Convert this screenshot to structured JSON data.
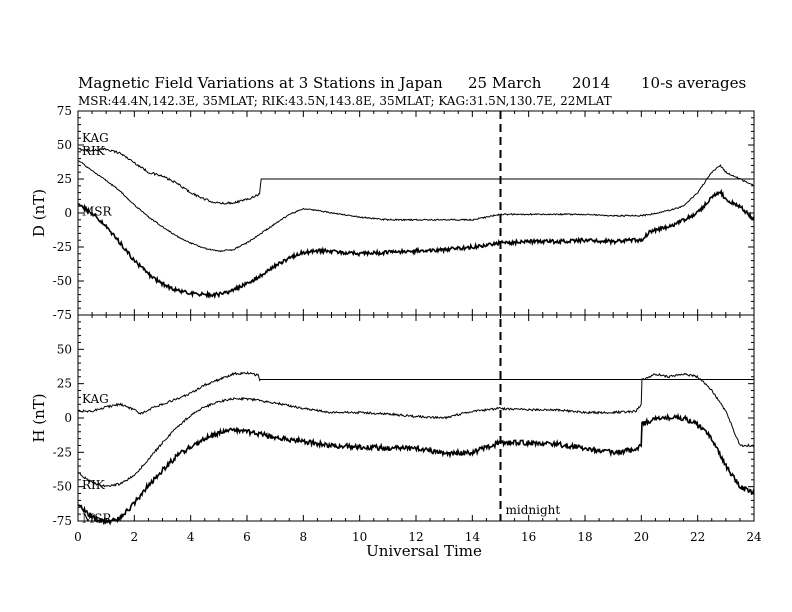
{
  "chart_data": {
    "type": "line",
    "title_parts": [
      "Magnetic Field Variations at 3 Stations in Japan",
      "25 March",
      "2014",
      "10-s averages"
    ],
    "subtitle": "MSR:44.4N,142.3E, 35MLAT;  RIK:43.5N,143.8E, 35MLAT;  KAG:31.5N,130.7E, 22MLAT",
    "xlabel": "Universal Time",
    "xlim": [
      0,
      24
    ],
    "xticks": [
      0,
      2,
      4,
      6,
      8,
      10,
      12,
      14,
      16,
      18,
      20,
      22,
      24
    ],
    "xtick_labels": [
      "0",
      "2",
      "4",
      "6",
      "8",
      "10",
      "12",
      "14",
      "16",
      "18",
      "20",
      "22",
      "24"
    ],
    "midnight_ut": 15,
    "midnight_label": "midnight",
    "panels": [
      {
        "ylabel": "D (nT)",
        "ylim": [
          -75,
          75
        ],
        "yticks": [
          75,
          50,
          25,
          0,
          -25,
          -50,
          -75
        ],
        "ytick_labels": [
          "75",
          "50",
          "25",
          "0",
          "-25",
          "-50",
          "-75"
        ],
        "series": [
          {
            "name": "KAG",
            "x": [
              0,
              0.5,
              1,
              1.5,
              2,
              2.5,
              3,
              3.5,
              4,
              4.5,
              5,
              5.5,
              6,
              6.45,
              6.5,
              10,
              20,
              24
            ],
            "y": [
              47,
              46,
              47,
              44,
              37,
              30,
              27,
              22,
              15,
              10,
              7,
              7.5,
              10,
              14,
              25,
              25,
              25,
              25
            ],
            "noise": 0.8
          },
          {
            "name": "RIK",
            "x": [
              0,
              0.5,
              1,
              1.5,
              2,
              2.5,
              3,
              3.5,
              4,
              4.5,
              5,
              5.5,
              6,
              6.5,
              7,
              7.5,
              8,
              8.5,
              9,
              10,
              11,
              12,
              13,
              14,
              15,
              16,
              17,
              18,
              19,
              19.5,
              20,
              20.3,
              20.6,
              21,
              21.5,
              22,
              22.5,
              22.8,
              23,
              23.5,
              24
            ],
            "y": [
              39,
              31,
              24,
              16,
              6,
              -3,
              -10,
              -17,
              -22,
              -26,
              -28,
              -27,
              -22,
              -15,
              -8,
              -1,
              3,
              2,
              0,
              -3,
              -5,
              -5,
              -5,
              -5,
              -1,
              -1,
              -1,
              -1,
              -2,
              -2,
              -2,
              -1,
              0,
              2,
              5,
              15,
              30,
              35,
              30,
              25,
              20
            ],
            "noise": 0.5
          },
          {
            "name": "MSR",
            "x": [
              0,
              0.5,
              1,
              1.5,
              2,
              2.5,
              3,
              3.5,
              4,
              4.5,
              5,
              5.5,
              6,
              6.5,
              7,
              7.5,
              8,
              8.5,
              9,
              10,
              11,
              12,
              13,
              14,
              15,
              16,
              17,
              18,
              19,
              19.5,
              20,
              20.3,
              20.6,
              21,
              21.5,
              22,
              22.5,
              22.8,
              23,
              23.5,
              24
            ],
            "y": [
              7,
              0,
              -10,
              -22,
              -35,
              -45,
              -52,
              -57,
              -59,
              -60,
              -60,
              -57,
              -52,
              -46,
              -39,
              -33,
              -29,
              -28,
              -28,
              -30,
              -29,
              -28,
              -27,
              -25,
              -22,
              -21,
              -21,
              -20,
              -21,
              -20,
              -20,
              -14,
              -12,
              -10,
              -5,
              0,
              12,
              16,
              10,
              5,
              -5
            ],
            "noise": 1.4
          }
        ]
      },
      {
        "ylabel": "H (nT)",
        "ylim": [
          -75,
          75
        ],
        "yticks": [
          75,
          50,
          25,
          0,
          -25,
          -50,
          -75
        ],
        "ytick_labels": [
          "75",
          "50",
          "25",
          "0",
          "-25",
          "-50",
          "-75"
        ],
        "series": [
          {
            "name": "KAG",
            "x": [
              0,
              0.5,
              1,
              1.5,
              2,
              2.2,
              2.5,
              3,
              3.5,
              4,
              4.5,
              5,
              5.5,
              6,
              6.4,
              6.45,
              10,
              20,
              24
            ],
            "y": [
              5,
              5,
              8,
              10,
              6,
              3,
              6,
              10,
              14,
              18,
              24,
              28,
              32,
              33,
              31,
              28,
              28,
              28,
              28
            ],
            "noise": 0.8
          },
          {
            "name": "RIK",
            "x": [
              0,
              0.5,
              1,
              1.5,
              2,
              2.5,
              3,
              3.5,
              4,
              4.5,
              5,
              5.5,
              6,
              7,
              8,
              9,
              10,
              11,
              12,
              13,
              14,
              15,
              16,
              17,
              18,
              19,
              19.8,
              20,
              20.02,
              20.5,
              21,
              21.5,
              22,
              22.5,
              23,
              23.5,
              24
            ],
            "y": [
              -40,
              -47,
              -50,
              -48,
              -42,
              -30,
              -18,
              -7,
              2,
              8,
              12,
              14,
              14,
              11,
              7,
              4,
              4,
              3,
              1,
              0,
              5,
              7,
              6,
              6,
              4,
              4,
              5,
              10,
              28,
              32,
              30,
              32,
              30,
              20,
              5,
              -20,
              -20
            ],
            "noise": 0.8
          },
          {
            "name": "MSR",
            "x": [
              0,
              0.5,
              1,
              1.5,
              2,
              2.5,
              3,
              3.5,
              4,
              4.5,
              5,
              5.5,
              6,
              7,
              8,
              9,
              10,
              11,
              12,
              13,
              14,
              15,
              16,
              17,
              18,
              19,
              19.8,
              20,
              20.02,
              20.5,
              21,
              21.5,
              22,
              22.5,
              23,
              23.5,
              24
            ],
            "y": [
              -63,
              -72,
              -76,
              -73,
              -62,
              -49,
              -38,
              -28,
              -21,
              -15,
              -11,
              -9,
              -10,
              -14,
              -17,
              -20,
              -21,
              -22,
              -22,
              -26,
              -25,
              -18,
              -18,
              -19,
              -22,
              -25,
              -23,
              -20,
              -5,
              0,
              0,
              0,
              -5,
              -15,
              -35,
              -50,
              -55
            ],
            "noise": 1.8
          }
        ]
      }
    ]
  }
}
